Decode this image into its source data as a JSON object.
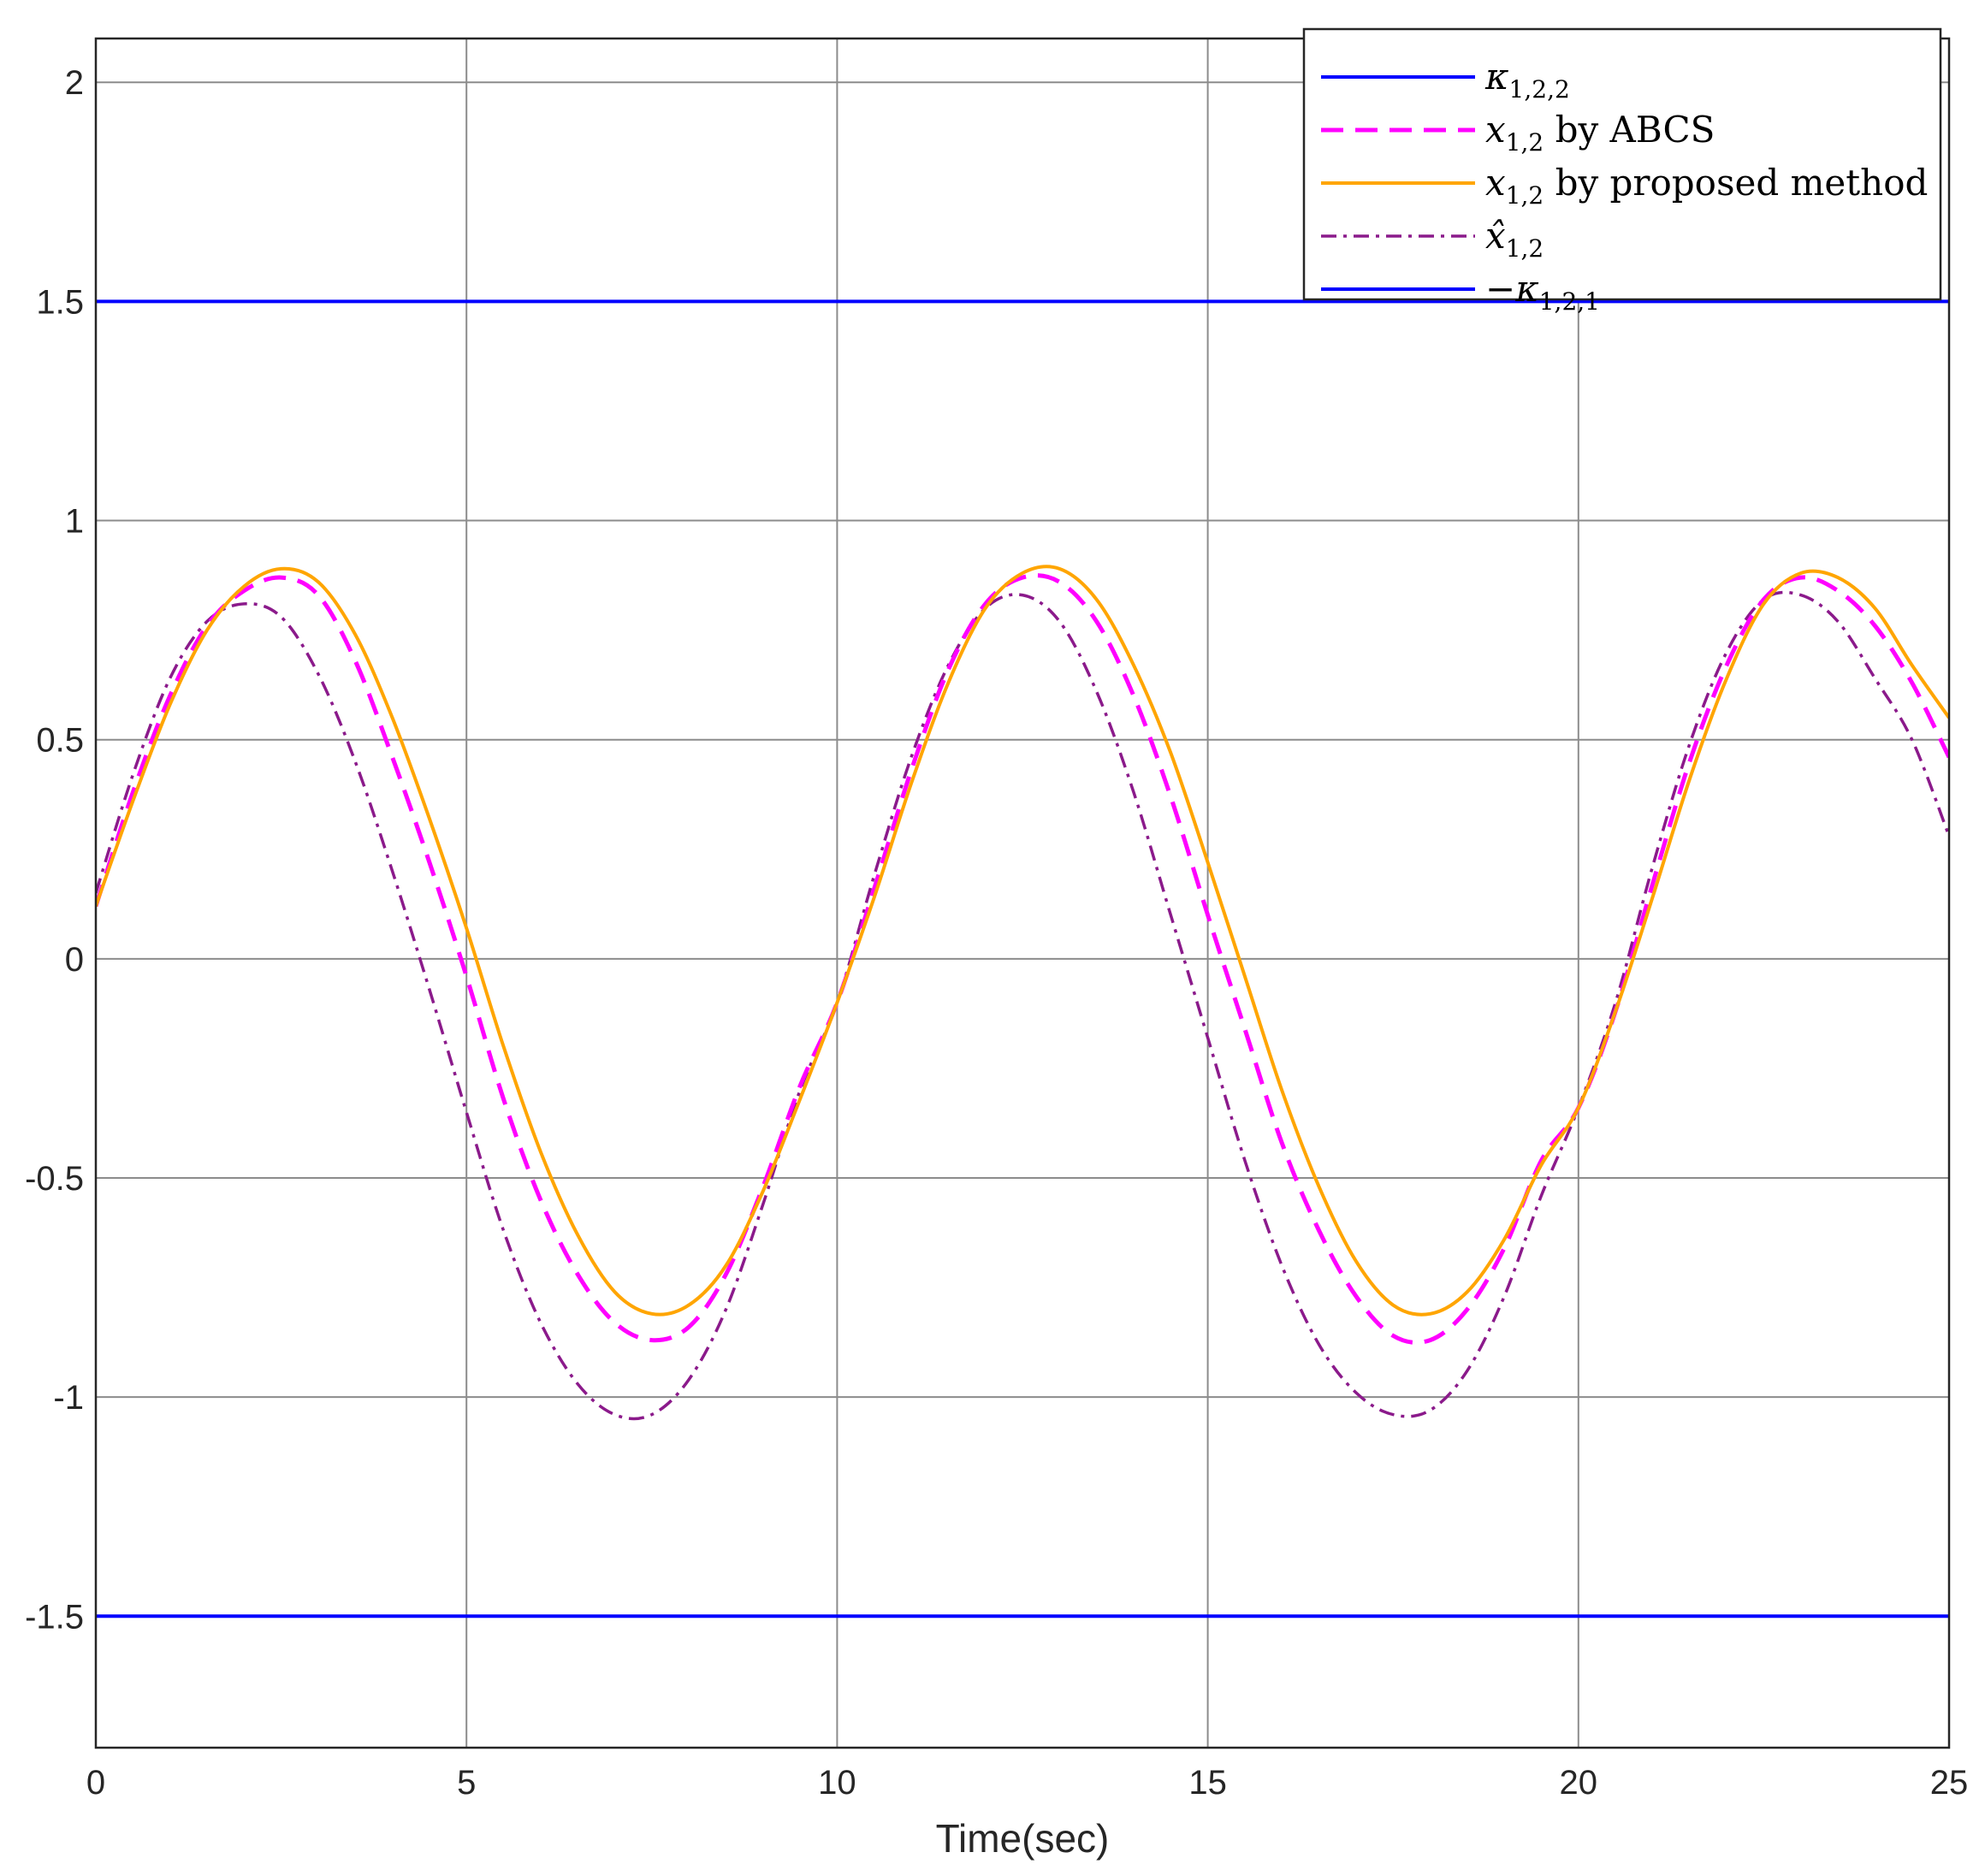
{
  "chart_data": {
    "type": "line",
    "xlabel": "Time(sec)",
    "ylabel": "",
    "xlim": [
      0,
      25
    ],
    "ylim": [
      -1.8,
      2.1
    ],
    "grid": true,
    "legend_position": "top-right",
    "x_ticks": [
      {
        "value": 0,
        "label": "0"
      },
      {
        "value": 5,
        "label": "5"
      },
      {
        "value": 10,
        "label": "10"
      },
      {
        "value": 15,
        "label": "15"
      },
      {
        "value": 20,
        "label": "20"
      },
      {
        "value": 25,
        "label": "25"
      }
    ],
    "y_ticks": [
      {
        "value": 2,
        "label": "2"
      },
      {
        "value": 1.5,
        "label": "1.5"
      },
      {
        "value": 1,
        "label": "1"
      },
      {
        "value": 0.5,
        "label": "0.5"
      },
      {
        "value": 0,
        "label": "0"
      },
      {
        "value": -0.5,
        "label": "-0.5"
      },
      {
        "value": -1,
        "label": "-1"
      },
      {
        "value": -1.5,
        "label": "-1.5"
      }
    ],
    "series": [
      {
        "name": "κ1,2,2",
        "color": "#0000ff",
        "style": "solid",
        "x": [
          0,
          25
        ],
        "y": [
          1.5,
          1.5
        ]
      },
      {
        "name": "x1,2 by ABCS",
        "color": "#ff00ff",
        "style": "dashed",
        "x": [
          0,
          0.5,
          1,
          1.5,
          2,
          2.5,
          3,
          3.5,
          4,
          4.5,
          5,
          5.5,
          6,
          6.5,
          7,
          7.5,
          8,
          8.5,
          9,
          9.5,
          10,
          10.5,
          11,
          11.5,
          12,
          12.5,
          13,
          13.5,
          14,
          14.5,
          15,
          15.5,
          16,
          16.5,
          17,
          17.5,
          18,
          18.5,
          19,
          19.5,
          20,
          20.5,
          21,
          21.5,
          22,
          22.5,
          23,
          23.5,
          24,
          24.5,
          25
        ],
        "y": [
          0.12,
          0.38,
          0.6,
          0.76,
          0.84,
          0.87,
          0.83,
          0.68,
          0.46,
          0.22,
          -0.04,
          -0.32,
          -0.55,
          -0.72,
          -0.83,
          -0.87,
          -0.84,
          -0.72,
          -0.52,
          -0.29,
          -0.1,
          0.16,
          0.43,
          0.66,
          0.81,
          0.87,
          0.86,
          0.77,
          0.6,
          0.37,
          0.1,
          -0.16,
          -0.42,
          -0.62,
          -0.77,
          -0.86,
          -0.87,
          -0.8,
          -0.66,
          -0.46,
          -0.34,
          -0.12,
          0.17,
          0.45,
          0.67,
          0.82,
          0.87,
          0.84,
          0.76,
          0.63,
          0.46
        ]
      },
      {
        "name": "x1,2 by proposed method",
        "color": "#ffa500",
        "style": "solid",
        "x": [
          0,
          0.5,
          1,
          1.5,
          2,
          2.5,
          3,
          3.5,
          4,
          4.5,
          5,
          5.5,
          6,
          6.5,
          7,
          7.5,
          8,
          8.5,
          9,
          9.5,
          10,
          10.5,
          11,
          11.5,
          12,
          12.5,
          13,
          13.5,
          14,
          14.5,
          15,
          15.5,
          16,
          16.5,
          17,
          17.5,
          18,
          18.5,
          19,
          19.5,
          20,
          20.5,
          21,
          21.5,
          22,
          22.5,
          23,
          23.5,
          24,
          24.5,
          25
        ],
        "y": [
          0.12,
          0.36,
          0.58,
          0.75,
          0.85,
          0.89,
          0.86,
          0.74,
          0.55,
          0.32,
          0.07,
          -0.2,
          -0.44,
          -0.63,
          -0.76,
          -0.81,
          -0.79,
          -0.7,
          -0.53,
          -0.32,
          -0.1,
          0.14,
          0.4,
          0.63,
          0.8,
          0.88,
          0.89,
          0.82,
          0.67,
          0.47,
          0.22,
          -0.04,
          -0.3,
          -0.52,
          -0.69,
          -0.79,
          -0.81,
          -0.76,
          -0.64,
          -0.47,
          -0.34,
          -0.12,
          0.14,
          0.41,
          0.64,
          0.81,
          0.88,
          0.87,
          0.8,
          0.67,
          0.55
        ]
      },
      {
        "name": "x̂1,2",
        "color": "#8b1a8b",
        "style": "dashdot",
        "x": [
          0,
          0.5,
          1,
          1.5,
          2,
          2.5,
          3,
          3.5,
          4,
          4.5,
          5,
          5.5,
          6,
          6.5,
          7,
          7.5,
          8,
          8.5,
          9,
          9.5,
          10,
          10.5,
          11,
          11.5,
          12,
          12.5,
          13,
          13.5,
          14,
          14.5,
          15,
          15.5,
          16,
          16.5,
          17,
          17.5,
          18,
          18.5,
          19,
          19.5,
          20,
          20.5,
          21,
          21.5,
          22,
          22.5,
          23,
          23.5,
          24,
          24.5,
          25
        ],
        "y": [
          0.15,
          0.42,
          0.64,
          0.77,
          0.81,
          0.78,
          0.65,
          0.45,
          0.2,
          -0.07,
          -0.35,
          -0.62,
          -0.83,
          -0.97,
          -1.04,
          -1.04,
          -0.96,
          -0.8,
          -0.56,
          -0.3,
          -0.1,
          0.19,
          0.46,
          0.67,
          0.8,
          0.83,
          0.77,
          0.61,
          0.38,
          0.1,
          -0.18,
          -0.46,
          -0.7,
          -0.88,
          -0.99,
          -1.04,
          -1.03,
          -0.94,
          -0.77,
          -0.54,
          -0.34,
          -0.1,
          0.21,
          0.49,
          0.7,
          0.82,
          0.83,
          0.77,
          0.64,
          0.5,
          0.28
        ]
      },
      {
        "name": "-κ1,2,1",
        "color": "#0000ff",
        "style": "solid",
        "x": [
          0,
          25
        ],
        "y": [
          -1.5,
          -1.5
        ]
      }
    ],
    "legend": [
      {
        "series": 0,
        "base": "κ",
        "sub": "1,2,2",
        "after": ""
      },
      {
        "series": 1,
        "base": "x",
        "sub": "1,2",
        "after": " by ABCS"
      },
      {
        "series": 2,
        "base": "x",
        "sub": "1,2",
        "after": " by proposed method"
      },
      {
        "series": 3,
        "base": "x̂",
        "sub": "1,2",
        "after": ""
      },
      {
        "series": 4,
        "base": "−κ",
        "sub": "1,2,1",
        "after": ""
      }
    ]
  }
}
